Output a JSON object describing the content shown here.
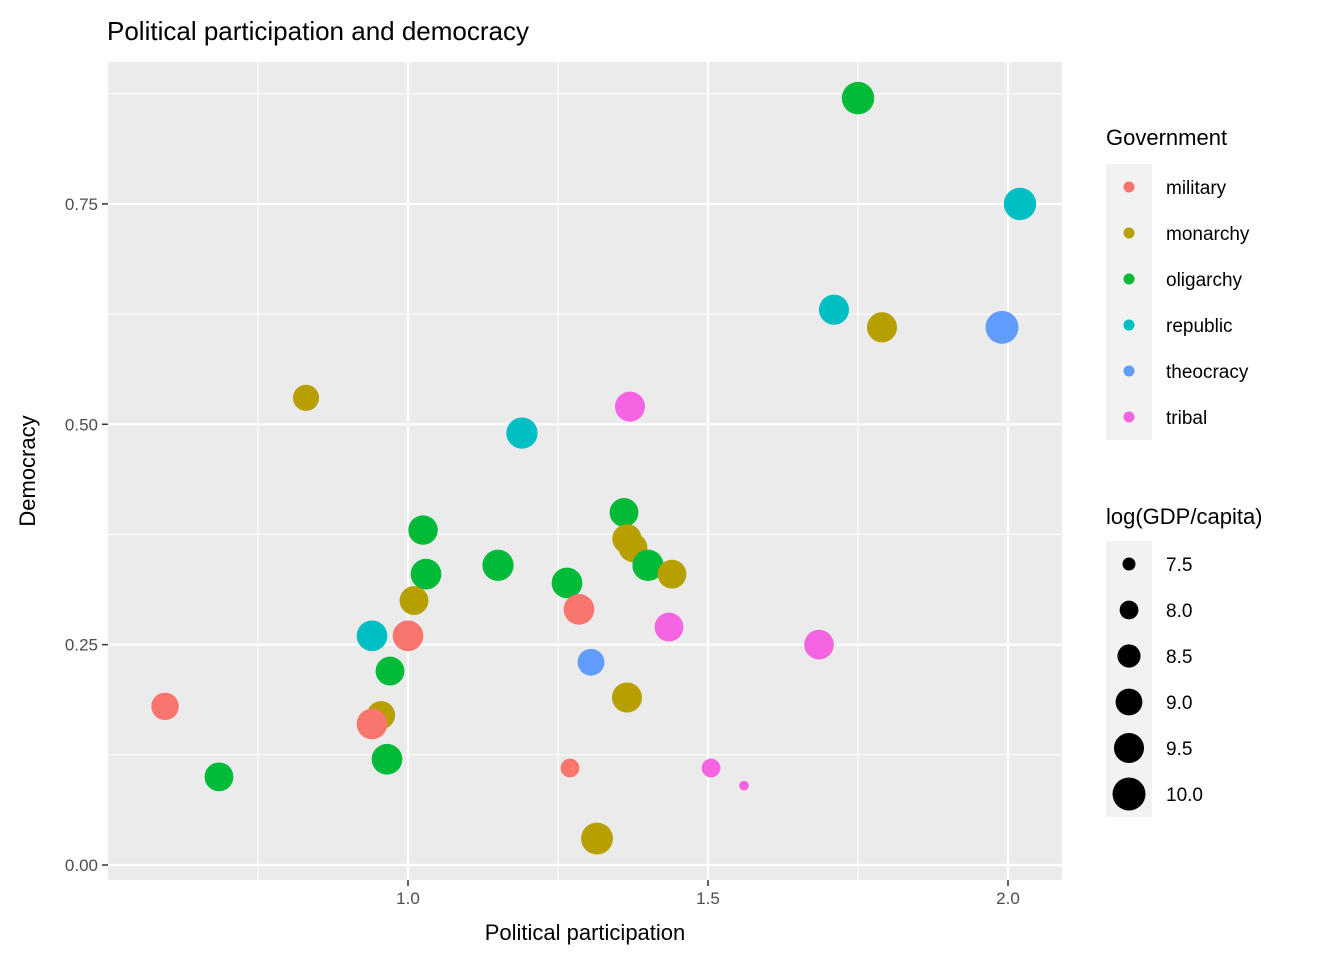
{
  "chart_data": {
    "type": "scatter",
    "title": "Political participation and democracy",
    "xlabel": "Political participation",
    "ylabel": "Democracy",
    "xlim": [
      0.5,
      2.09
    ],
    "ylim": [
      -0.017,
      0.911
    ],
    "x_ticks": [
      {
        "value": 1.0,
        "label": "1.0"
      },
      {
        "value": 1.5,
        "label": "1.5"
      },
      {
        "value": 2.0,
        "label": "2.0"
      }
    ],
    "y_ticks": [
      {
        "value": 0,
        "label": "0.00"
      },
      {
        "value": 0.25,
        "label": "0.25"
      },
      {
        "value": 0.5,
        "label": "0.50"
      },
      {
        "value": 0.75,
        "label": "0.75"
      }
    ],
    "grid": true,
    "legend_position": "right",
    "color_legend": {
      "title": "Government",
      "entries": [
        {
          "label": "military",
          "color": "#F8766D"
        },
        {
          "label": "monarchy",
          "color": "#B79F00"
        },
        {
          "label": "oligarchy",
          "color": "#00BA38"
        },
        {
          "label": "republic",
          "color": "#00BFC4"
        },
        {
          "label": "theocracy",
          "color": "#619CFF"
        },
        {
          "label": "tribal",
          "color": "#F564E3"
        }
      ]
    },
    "size_legend": {
      "title": "log(GDP/capita)",
      "entries": [
        {
          "value": 7.5,
          "label": "7.5"
        },
        {
          "value": 8.0,
          "label": "8.0"
        },
        {
          "value": 8.5,
          "label": "8.5"
        },
        {
          "value": 9.0,
          "label": "9.0"
        },
        {
          "value": 9.5,
          "label": "9.5"
        },
        {
          "value": 10.0,
          "label": "10.0"
        }
      ]
    },
    "points": [
      {
        "x": 1.75,
        "y": 0.87,
        "group": "oligarchy",
        "size": 9.9
      },
      {
        "x": 2.02,
        "y": 0.75,
        "group": "republic",
        "size": 9.9
      },
      {
        "x": 1.71,
        "y": 0.63,
        "group": "republic",
        "size": 9.5
      },
      {
        "x": 1.79,
        "y": 0.61,
        "group": "monarchy",
        "size": 9.5
      },
      {
        "x": 1.99,
        "y": 0.61,
        "group": "theocracy",
        "size": 10.0
      },
      {
        "x": 0.83,
        "y": 0.53,
        "group": "monarchy",
        "size": 8.9
      },
      {
        "x": 1.37,
        "y": 0.52,
        "group": "tribal",
        "size": 9.5
      },
      {
        "x": 1.19,
        "y": 0.49,
        "group": "republic",
        "size": 9.7
      },
      {
        "x": 1.36,
        "y": 0.4,
        "group": "oligarchy",
        "size": 9.3
      },
      {
        "x": 1.025,
        "y": 0.38,
        "group": "oligarchy",
        "size": 9.4
      },
      {
        "x": 1.365,
        "y": 0.37,
        "group": "monarchy",
        "size": 9.4
      },
      {
        "x": 1.375,
        "y": 0.36,
        "group": "monarchy",
        "size": 9.3
      },
      {
        "x": 1.15,
        "y": 0.34,
        "group": "oligarchy",
        "size": 9.7
      },
      {
        "x": 1.4,
        "y": 0.34,
        "group": "oligarchy",
        "size": 9.7
      },
      {
        "x": 1.44,
        "y": 0.33,
        "group": "monarchy",
        "size": 9.3
      },
      {
        "x": 1.03,
        "y": 0.33,
        "group": "oligarchy",
        "size": 9.6
      },
      {
        "x": 1.265,
        "y": 0.32,
        "group": "oligarchy",
        "size": 9.6
      },
      {
        "x": 1.01,
        "y": 0.3,
        "group": "monarchy",
        "size": 9.3
      },
      {
        "x": 1.285,
        "y": 0.29,
        "group": "military",
        "size": 9.6
      },
      {
        "x": 1.435,
        "y": 0.27,
        "group": "tribal",
        "size": 9.3
      },
      {
        "x": 0.94,
        "y": 0.26,
        "group": "republic",
        "size": 9.6
      },
      {
        "x": 1.0,
        "y": 0.26,
        "group": "military",
        "size": 9.6
      },
      {
        "x": 1.305,
        "y": 0.23,
        "group": "theocracy",
        "size": 9.0
      },
      {
        "x": 1.685,
        "y": 0.25,
        "group": "monarchy",
        "size": 9.4
      },
      {
        "x": 1.685,
        "y": 0.25,
        "group": "tribal",
        "size": 9.4
      },
      {
        "x": 0.97,
        "y": 0.22,
        "group": "oligarchy",
        "size": 9.3
      },
      {
        "x": 0.595,
        "y": 0.18,
        "group": "military",
        "size": 9.1
      },
      {
        "x": 1.365,
        "y": 0.19,
        "group": "monarchy",
        "size": 9.5
      },
      {
        "x": 0.955,
        "y": 0.17,
        "group": "monarchy",
        "size": 9.2
      },
      {
        "x": 0.94,
        "y": 0.16,
        "group": "military",
        "size": 9.6
      },
      {
        "x": 0.965,
        "y": 0.12,
        "group": "oligarchy",
        "size": 9.6
      },
      {
        "x": 0.685,
        "y": 0.1,
        "group": "oligarchy",
        "size": 9.3
      },
      {
        "x": 1.27,
        "y": 0.11,
        "group": "military",
        "size": 8.0
      },
      {
        "x": 1.505,
        "y": 0.11,
        "group": "tribal",
        "size": 8.0
      },
      {
        "x": 1.56,
        "y": 0.09,
        "group": "tribal",
        "size": 7.3
      },
      {
        "x": 1.315,
        "y": 0.03,
        "group": "monarchy",
        "size": 9.8
      }
    ]
  }
}
